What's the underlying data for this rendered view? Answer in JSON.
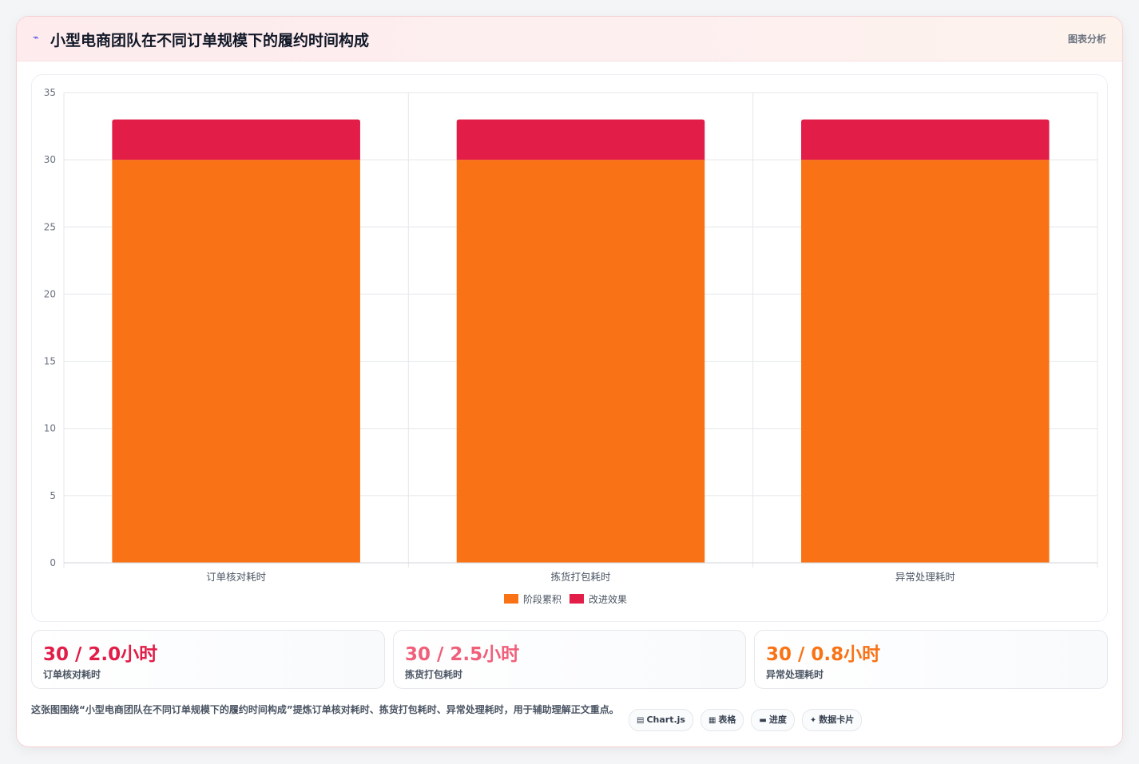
{
  "header": {
    "icon": "chart-line-icon",
    "title": "小型电商团队在不同订单规模下的履约时间构成",
    "action_label": "图表分析"
  },
  "chart_data": {
    "type": "bar",
    "stacked": true,
    "categories": [
      "订单核对耗时",
      "拣货打包耗时",
      "异常处理耗时"
    ],
    "series": [
      {
        "name": "阶段累积",
        "color": "#f97316",
        "values": [
          30,
          30,
          30
        ]
      },
      {
        "name": "改进效果",
        "color": "#e11d48",
        "values": [
          3,
          3,
          3
        ]
      }
    ],
    "ylim": [
      0,
      35
    ],
    "yticks": [
      0,
      5,
      10,
      15,
      20,
      25,
      30,
      35
    ],
    "grid": true,
    "legend_position": "bottom"
  },
  "stats": [
    {
      "value": "30 / 2.0小时",
      "label": "订单核对耗时",
      "color": "#e11d48"
    },
    {
      "value": "30 / 2.5小时",
      "label": "拣货打包耗时",
      "color": "#f0607a"
    },
    {
      "value": "30 / 0.8小时",
      "label": "异常处理耗时",
      "color": "#f97316"
    }
  ],
  "footer": {
    "description": "这张图围绕“小型电商团队在不同订单规模下的履约时间构成”提炼订单核对耗时、拣货打包耗时、异常处理耗时，用于辅助理解正文重点。",
    "tags": [
      {
        "icon": "▤",
        "label": "Chart.js"
      },
      {
        "icon": "▦",
        "label": "表格"
      },
      {
        "icon": "▬",
        "label": "进度"
      },
      {
        "icon": "✦",
        "label": "数据卡片"
      }
    ]
  }
}
